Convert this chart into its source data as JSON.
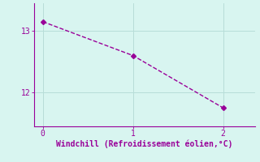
{
  "x": [
    0,
    1,
    2
  ],
  "y": [
    13.15,
    12.6,
    11.75
  ],
  "line_color": "#990099",
  "marker": "D",
  "markersize": 3,
  "linestyle": "--",
  "linewidth": 1.0,
  "xlabel": "Windchill (Refroidissement éolien,°C)",
  "xlabel_fontsize": 7,
  "xlabel_color": "#990099",
  "tick_color": "#990099",
  "tick_fontsize": 7,
  "xlim": [
    -0.1,
    2.35
  ],
  "ylim": [
    11.45,
    13.45
  ],
  "yticks": [
    12,
    13
  ],
  "xticks": [
    0,
    1,
    2
  ],
  "background_color": "#d8f5f0",
  "grid_color": "#b8ddd8",
  "grid_linewidth": 0.7,
  "spine_color": "#990099",
  "spine_linewidth": 0.8
}
